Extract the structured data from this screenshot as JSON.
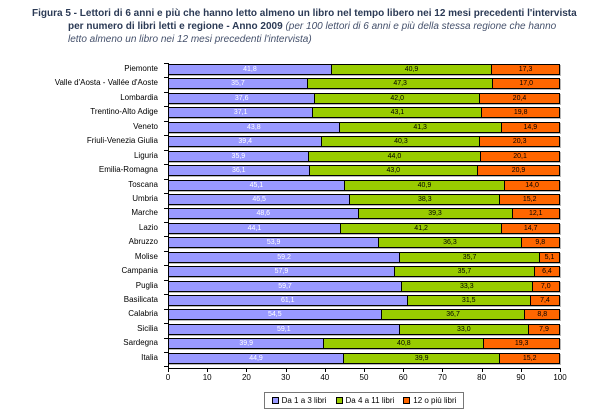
{
  "figure": {
    "title_main": "Figura 5 - Lettori di 6 anni e più che hanno letto almeno un libro nel tempo libero nei 12 mesi precedenti l'intervista per numero di libri letti e regione - Anno 2009 ",
    "title_note": "(per 100 lettori di 6 anni e più della stessa regione che hanno letto almeno un libro nei 12 mesi precedenti l'intervista)"
  },
  "colors": {
    "title_text": "#2b3a55",
    "axis": "#000000",
    "blue": "#9999FF",
    "green": "#99CC00",
    "orange": "#FF6600"
  },
  "chart_data": {
    "type": "bar",
    "orientation": "horizontal",
    "stacked": true,
    "grid": false,
    "legend_position": "bottom",
    "xlim": [
      0,
      100
    ],
    "x_ticks": [
      0,
      10,
      20,
      30,
      40,
      50,
      60,
      70,
      80,
      90,
      100
    ],
    "value_unit": "per 100 lettori",
    "categories": [
      "Piemonte",
      "Valle d'Aosta - Vallée d'Aoste",
      "Lombardia",
      "Trentino-Alto Adige",
      "Veneto",
      "Friuli-Venezia Giulia",
      "Liguria",
      "Emilia-Romagna",
      "Toscana",
      "Umbria",
      "Marche",
      "Lazio",
      "Abruzzo",
      "Molise",
      "Campania",
      "Puglia",
      "Basilicata",
      "Calabria",
      "Sicilia",
      "Sardegna",
      "Italia"
    ],
    "series": [
      {
        "name": "Da 1 a 3 libri",
        "color": "#9999FF",
        "values": [
          41.8,
          35.7,
          37.6,
          37.1,
          43.8,
          39.4,
          35.9,
          36.1,
          45.1,
          46.5,
          48.6,
          44.1,
          53.9,
          59.2,
          57.9,
          59.7,
          61.1,
          54.5,
          59.1,
          39.9,
          44.9
        ]
      },
      {
        "name": "Da 4 a 11 libri",
        "color": "#99CC00",
        "values": [
          40.9,
          47.3,
          42.0,
          43.1,
          41.3,
          40.3,
          44.0,
          43.0,
          40.9,
          38.3,
          39.3,
          41.2,
          36.3,
          35.7,
          35.7,
          33.3,
          31.5,
          36.7,
          33.0,
          40.8,
          39.9
        ]
      },
      {
        "name": "12 o più libri",
        "color": "#FF6600",
        "values": [
          17.3,
          17.0,
          20.4,
          19.8,
          14.9,
          20.3,
          20.1,
          20.9,
          14.0,
          15.2,
          12.1,
          14.7,
          9.8,
          5.1,
          6.4,
          7.0,
          7.4,
          8.8,
          7.9,
          19.3,
          15.2
        ]
      }
    ]
  }
}
